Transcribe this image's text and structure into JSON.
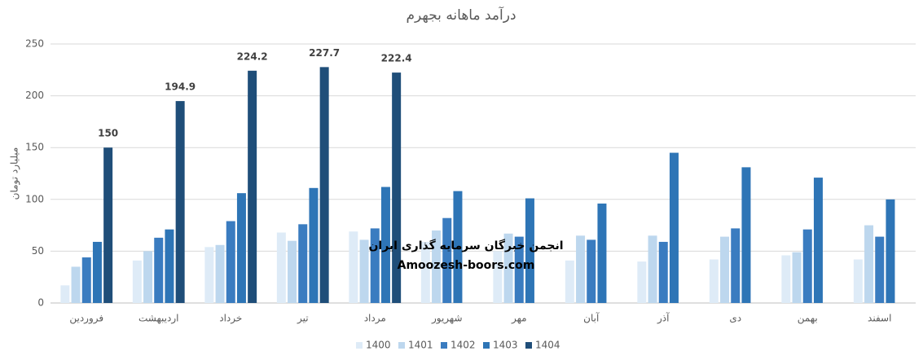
{
  "chart_data": {
    "type": "bar",
    "title": "درآمد ماهانه بجهرم",
    "y_label": "میلیارد تومان",
    "categories": [
      "فروردین",
      "اردیبهشت",
      "خرداد",
      "تیر",
      "مرداد",
      "شهریور",
      "مهر",
      "آبان",
      "آذر",
      "دی",
      "بهمن",
      "اسفند"
    ],
    "series": [
      {
        "name": "1400",
        "color": "#deebf7",
        "values": [
          17,
          41,
          54,
          68,
          69,
          59,
          50,
          41,
          40,
          42,
          46,
          42
        ]
      },
      {
        "name": "1401",
        "color": "#bdd7ee",
        "values": [
          35,
          50,
          56,
          60,
          61,
          70,
          67,
          65,
          65,
          64,
          49,
          75
        ]
      },
      {
        "name": "1402",
        "color": "#3a7cc0",
        "values": [
          44,
          63,
          79,
          76,
          72,
          82,
          64,
          61,
          59,
          72,
          71,
          64
        ]
      },
      {
        "name": "1403",
        "color": "#2e75b6",
        "values": [
          59,
          71,
          106,
          111,
          112,
          108,
          101,
          96,
          145,
          131,
          121,
          100
        ]
      },
      {
        "name": "1404",
        "color": "#1f4e79",
        "values": [
          150,
          194.9,
          224.2,
          227.7,
          222.4,
          null,
          null,
          null,
          null,
          null,
          null,
          null
        ],
        "show_labels": true
      }
    ],
    "ylim": [
      0,
      250
    ],
    "yticks": [
      0,
      50,
      100,
      150,
      200,
      250
    ],
    "grid": true,
    "legend": "bottom",
    "watermark": [
      "انجمن خبرگان سرمایه گذاری ایران",
      "Amoozesh-boors.com"
    ]
  }
}
